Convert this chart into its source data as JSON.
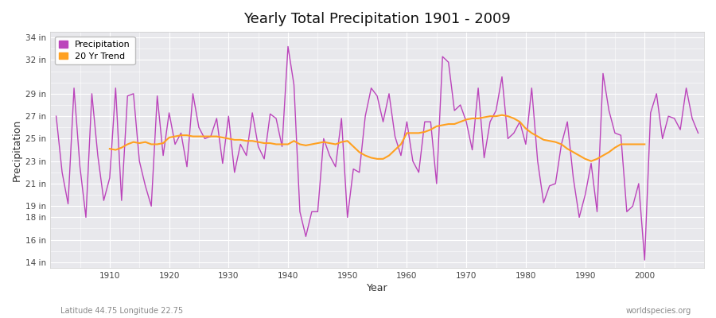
{
  "title": "Yearly Total Precipitation 1901 - 2009",
  "xlabel": "Year",
  "ylabel": "Precipitation",
  "subtitle_left": "Latitude 44.75 Longitude 22.75",
  "subtitle_right": "worldspecies.org",
  "fig_bg_color": "#ffffff",
  "plot_bg_color": "#e8e8ec",
  "precip_color": "#bb44bb",
  "trend_color": "#ffa020",
  "years": [
    1901,
    1902,
    1903,
    1904,
    1905,
    1906,
    1907,
    1908,
    1909,
    1910,
    1911,
    1912,
    1913,
    1914,
    1915,
    1916,
    1917,
    1918,
    1919,
    1920,
    1921,
    1922,
    1923,
    1924,
    1925,
    1926,
    1927,
    1928,
    1929,
    1930,
    1931,
    1932,
    1933,
    1934,
    1935,
    1936,
    1937,
    1938,
    1939,
    1940,
    1941,
    1942,
    1943,
    1944,
    1945,
    1946,
    1947,
    1948,
    1949,
    1950,
    1951,
    1952,
    1953,
    1954,
    1955,
    1956,
    1957,
    1958,
    1959,
    1960,
    1961,
    1962,
    1963,
    1964,
    1965,
    1966,
    1967,
    1968,
    1969,
    1970,
    1971,
    1972,
    1973,
    1974,
    1975,
    1976,
    1977,
    1978,
    1979,
    1980,
    1981,
    1982,
    1983,
    1984,
    1985,
    1986,
    1987,
    1988,
    1989,
    1990,
    1991,
    1992,
    1993,
    1994,
    1995,
    1996,
    1997,
    1998,
    1999,
    2000,
    2001,
    2002,
    2003,
    2004,
    2005,
    2006,
    2007,
    2008,
    2009
  ],
  "precip": [
    27.0,
    22.0,
    19.2,
    29.5,
    22.5,
    18.0,
    29.0,
    23.5,
    19.5,
    21.5,
    29.5,
    19.5,
    28.8,
    29.0,
    23.0,
    20.8,
    19.0,
    28.8,
    23.5,
    27.3,
    24.5,
    25.5,
    22.5,
    29.0,
    26.0,
    25.0,
    25.2,
    26.8,
    22.8,
    27.0,
    22.0,
    24.5,
    23.5,
    27.3,
    24.3,
    23.2,
    27.2,
    26.8,
    24.3,
    33.2,
    29.8,
    18.5,
    16.3,
    18.5,
    18.5,
    25.0,
    23.5,
    22.5,
    26.8,
    18.0,
    22.3,
    22.0,
    27.0,
    29.5,
    28.8,
    26.5,
    29.0,
    25.2,
    23.5,
    26.5,
    23.0,
    22.0,
    26.5,
    26.5,
    21.0,
    32.3,
    31.8,
    27.5,
    28.0,
    26.5,
    24.0,
    29.5,
    23.3,
    26.5,
    27.5,
    30.5,
    25.0,
    25.5,
    26.5,
    24.5,
    29.5,
    23.0,
    19.3,
    20.8,
    21.0,
    24.5,
    26.5,
    21.5,
    18.0,
    20.0,
    22.8,
    18.5,
    30.8,
    27.5,
    25.5,
    25.3,
    18.5,
    19.0,
    21.0,
    14.2,
    27.3,
    29.0,
    25.0,
    27.0,
    26.8,
    25.8,
    29.5,
    26.8,
    25.5
  ],
  "trend": [
    null,
    null,
    null,
    null,
    null,
    null,
    null,
    null,
    null,
    24.1,
    24.0,
    24.2,
    24.5,
    24.7,
    24.6,
    24.7,
    24.5,
    24.5,
    24.6,
    25.1,
    25.2,
    25.3,
    25.3,
    25.2,
    25.2,
    25.2,
    25.2,
    25.2,
    25.1,
    25.0,
    24.9,
    24.9,
    24.8,
    24.8,
    24.7,
    24.6,
    24.6,
    24.5,
    24.5,
    24.5,
    24.8,
    24.5,
    24.4,
    24.5,
    24.6,
    24.7,
    24.6,
    24.5,
    24.7,
    24.8,
    24.3,
    23.8,
    23.5,
    23.3,
    23.2,
    23.2,
    23.5,
    24.0,
    24.5,
    25.5,
    25.5,
    25.5,
    25.6,
    25.8,
    26.1,
    26.2,
    26.3,
    26.3,
    26.5,
    26.7,
    26.8,
    26.8,
    26.9,
    27.0,
    27.0,
    27.1,
    27.0,
    26.8,
    26.5,
    25.9,
    25.5,
    25.2,
    24.9,
    24.8,
    24.7,
    24.5,
    24.1,
    23.8,
    23.5,
    23.2,
    23.0,
    23.2,
    23.5,
    23.8,
    24.2,
    24.5,
    24.5,
    24.5,
    24.5,
    24.5,
    null,
    null,
    null,
    null,
    null,
    null,
    null,
    null,
    null
  ],
  "yticks": [
    14,
    16,
    18,
    19,
    21,
    23,
    25,
    27,
    29,
    32,
    34
  ],
  "ytick_labels": [
    "14 in",
    "16 in",
    "18 in",
    "19 in",
    "21 in",
    "23 in",
    "25 in",
    "27 in",
    "29 in",
    "32 in",
    "34 in"
  ],
  "xticks": [
    1910,
    1920,
    1930,
    1940,
    1950,
    1960,
    1970,
    1980,
    1990,
    2000
  ],
  "ylim": [
    13.5,
    34.5
  ],
  "xlim": [
    1900,
    2010
  ]
}
